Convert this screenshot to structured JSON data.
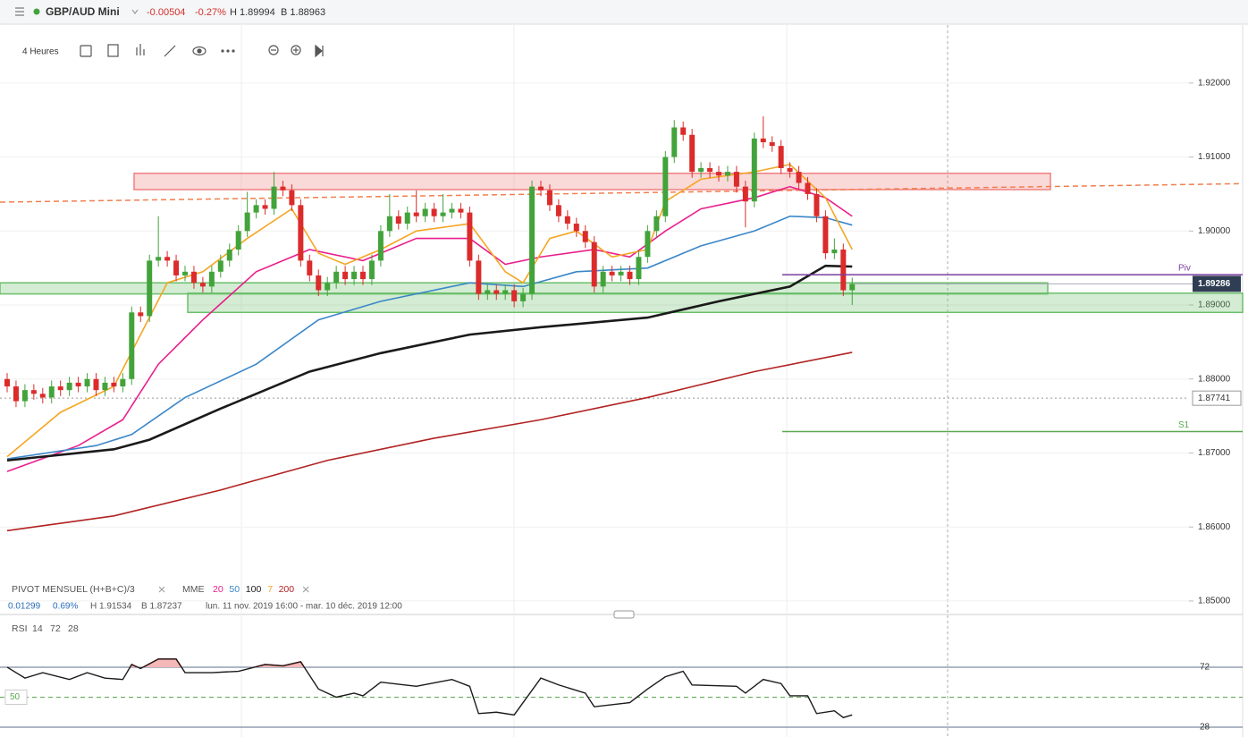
{
  "header": {
    "symbol": "GBP/AUD Mini",
    "change": "-0.00504",
    "change_pct": "-0.27%",
    "high": "H 1.89994",
    "low": "B 1.88963"
  },
  "toolbar": {
    "timeframe": "4 Heures"
  },
  "chart_data": [
    {
      "type": "candlestick",
      "grid": true,
      "up_color": "#43a33b",
      "down_color": "#dc2b2b",
      "ylim": [
        1.8483,
        1.9282
      ],
      "yticks": [
        {
          "value": 1.92,
          "label": "1.92000"
        },
        {
          "value": 1.91,
          "label": "1.91000"
        },
        {
          "value": 1.9,
          "label": "1.90000"
        },
        {
          "value": 1.89,
          "label": "1.89000"
        },
        {
          "value": 1.88,
          "label": "1.88000"
        },
        {
          "value": 1.87,
          "label": "1.87000"
        },
        {
          "value": 1.86,
          "label": "1.86000"
        },
        {
          "value": 1.85,
          "label": "1.85000"
        }
      ],
      "open": [
        1.88,
        1.879,
        1.877,
        1.8785,
        1.878,
        1.8775,
        1.879,
        1.8785,
        1.8795,
        1.879,
        1.88,
        1.8785,
        1.8795,
        1.879,
        1.88,
        1.889,
        1.8885,
        1.896,
        1.8965,
        1.896,
        1.894,
        1.8945,
        1.893,
        1.8925,
        1.8945,
        1.896,
        1.8975,
        1.9,
        1.9025,
        1.9035,
        1.903,
        1.906,
        1.9055,
        1.9035,
        1.896,
        1.894,
        1.892,
        1.893,
        1.8945,
        1.8935,
        1.8945,
        1.8935,
        1.896,
        1.9,
        1.902,
        1.901,
        1.9025,
        1.902,
        1.903,
        1.902,
        1.9025,
        1.903,
        1.9025,
        1.896,
        1.8915,
        1.892,
        1.8915,
        1.892,
        1.8905,
        1.8915,
        1.906,
        1.9055,
        1.9035,
        1.902,
        1.901,
        1.9,
        1.8985,
        1.8925,
        1.8945,
        1.894,
        1.8945,
        1.8935,
        1.8965,
        1.9,
        1.902,
        1.91,
        1.914,
        1.913,
        1.908,
        1.9085,
        1.908,
        1.9075,
        1.908,
        1.906,
        1.904,
        1.9125,
        1.912,
        1.9115,
        1.9085,
        1.908,
        1.9065,
        1.905,
        1.902,
        1.897,
        1.8975,
        1.892
      ],
      "high": [
        1.8808,
        1.8798,
        1.8793,
        1.8793,
        1.8788,
        1.8798,
        1.8798,
        1.8803,
        1.8803,
        1.8808,
        1.8808,
        1.8803,
        1.8803,
        1.8808,
        1.8898,
        1.8898,
        1.8968,
        1.902,
        1.8973,
        1.8968,
        1.8953,
        1.8953,
        1.8938,
        1.8953,
        1.8968,
        1.8983,
        1.9008,
        1.9053,
        1.9043,
        1.9043,
        1.908,
        1.9068,
        1.9063,
        1.9043,
        1.8968,
        1.8948,
        1.8938,
        1.8953,
        1.8953,
        1.8953,
        1.8953,
        1.8968,
        1.9008,
        1.905,
        1.9028,
        1.9033,
        1.9055,
        1.9038,
        1.9038,
        1.905,
        1.9038,
        1.9038,
        1.9033,
        1.8968,
        1.8928,
        1.8928,
        1.8928,
        1.8928,
        1.8923,
        1.9068,
        1.9068,
        1.9063,
        1.9043,
        1.9028,
        1.9018,
        1.9008,
        1.8993,
        1.8953,
        1.8953,
        1.8953,
        1.8953,
        1.8973,
        1.9008,
        1.9028,
        1.9108,
        1.915,
        1.9148,
        1.9138,
        1.9093,
        1.9093,
        1.9088,
        1.9088,
        1.9088,
        1.9068,
        1.9133,
        1.9155,
        1.9128,
        1.9123,
        1.9093,
        1.9088,
        1.9073,
        1.9058,
        1.9028,
        1.899,
        1.8983,
        1.8937
      ],
      "low": [
        1.8782,
        1.8762,
        1.8762,
        1.8772,
        1.8767,
        1.8767,
        1.8777,
        1.8777,
        1.8782,
        1.8782,
        1.8777,
        1.8777,
        1.8782,
        1.8782,
        1.8792,
        1.8877,
        1.8877,
        1.8952,
        1.8952,
        1.8932,
        1.8932,
        1.8922,
        1.8917,
        1.8917,
        1.8937,
        1.8952,
        1.8967,
        1.8992,
        1.9017,
        1.9022,
        1.9022,
        1.9047,
        1.9027,
        1.8952,
        1.8932,
        1.8912,
        1.8912,
        1.8922,
        1.8927,
        1.8927,
        1.8927,
        1.8927,
        1.8952,
        1.8992,
        1.9002,
        1.9002,
        1.9012,
        1.9012,
        1.9012,
        1.9012,
        1.9017,
        1.9017,
        1.8952,
        1.8907,
        1.8907,
        1.8907,
        1.8907,
        1.8897,
        1.8897,
        1.8907,
        1.9047,
        1.9027,
        1.9012,
        1.9002,
        1.8992,
        1.8977,
        1.8917,
        1.8917,
        1.8932,
        1.8932,
        1.8927,
        1.8927,
        1.8957,
        1.8992,
        1.9012,
        1.9092,
        1.9122,
        1.9072,
        1.9072,
        1.9072,
        1.9067,
        1.9067,
        1.9052,
        1.9005,
        1.9032,
        1.9112,
        1.9107,
        1.9077,
        1.9072,
        1.9057,
        1.9042,
        1.9012,
        1.8962,
        1.8962,
        1.8912,
        1.89
      ],
      "close": [
        1.879,
        1.877,
        1.8785,
        1.878,
        1.8775,
        1.879,
        1.8785,
        1.8795,
        1.879,
        1.88,
        1.8785,
        1.8795,
        1.879,
        1.88,
        1.889,
        1.8885,
        1.896,
        1.8965,
        1.896,
        1.894,
        1.8945,
        1.893,
        1.8925,
        1.8945,
        1.896,
        1.8975,
        1.9,
        1.9025,
        1.9035,
        1.903,
        1.906,
        1.9055,
        1.9035,
        1.896,
        1.894,
        1.892,
        1.893,
        1.8945,
        1.8935,
        1.8945,
        1.8935,
        1.896,
        1.9,
        1.902,
        1.901,
        1.9025,
        1.902,
        1.903,
        1.902,
        1.9025,
        1.903,
        1.9025,
        1.896,
        1.8915,
        1.892,
        1.8915,
        1.892,
        1.8905,
        1.8915,
        1.906,
        1.9055,
        1.9035,
        1.902,
        1.901,
        1.9,
        1.8985,
        1.8925,
        1.8945,
        1.894,
        1.8945,
        1.8935,
        1.8965,
        1.9,
        1.902,
        1.91,
        1.914,
        1.913,
        1.908,
        1.9085,
        1.908,
        1.9075,
        1.908,
        1.906,
        1.904,
        1.9125,
        1.912,
        1.9115,
        1.9085,
        1.908,
        1.9065,
        1.905,
        1.902,
        1.897,
        1.8975,
        1.892,
        1.89286
      ],
      "series": [
        {
          "name": "20",
          "color": "#e91e8c",
          "x": [
            0,
            8,
            13,
            17,
            22,
            28,
            34,
            40,
            46,
            52,
            56,
            60,
            66,
            70,
            74,
            78,
            84,
            88,
            92,
            95
          ],
          "values": [
            1.8675,
            1.871,
            1.8745,
            1.882,
            1.888,
            1.8945,
            1.8975,
            1.896,
            1.899,
            1.899,
            1.8955,
            1.8965,
            1.8975,
            1.8965,
            1.9,
            1.903,
            1.9045,
            1.906,
            1.9045,
            1.902
          ]
        },
        {
          "name": "50",
          "color": "#3a86c8",
          "x": [
            0,
            10,
            14,
            20,
            28,
            35,
            42,
            52,
            58,
            64,
            72,
            78,
            84,
            88,
            92,
            95
          ],
          "values": [
            1.8692,
            1.871,
            1.8725,
            1.8775,
            1.882,
            1.888,
            1.8905,
            1.893,
            1.8925,
            1.8945,
            1.895,
            1.898,
            1.9,
            1.902,
            1.9018,
            1.9008
          ]
        },
        {
          "name": "100",
          "color": "#1a1a1a",
          "x": [
            0,
            12,
            16,
            24,
            34,
            42,
            52,
            60,
            72,
            80,
            88,
            92,
            95
          ],
          "values": [
            1.869,
            1.8705,
            1.8718,
            1.876,
            1.881,
            1.8835,
            1.886,
            1.887,
            1.8883,
            1.8905,
            1.8925,
            1.8953,
            1.8952
          ]
        },
        {
          "name": "7",
          "color": "#f5a623",
          "x": [
            0,
            6,
            12,
            15,
            18,
            22,
            27,
            32,
            35,
            38,
            42,
            46,
            52,
            56,
            58,
            61,
            64,
            68,
            72,
            74,
            78,
            84,
            88,
            92,
            95
          ],
          "values": [
            1.8695,
            1.8755,
            1.879,
            1.886,
            1.893,
            1.8945,
            1.899,
            1.903,
            1.897,
            1.8955,
            1.8975,
            1.9,
            1.901,
            1.8945,
            1.893,
            1.899,
            1.9,
            1.8965,
            1.8975,
            1.904,
            1.907,
            1.908,
            1.909,
            1.9045,
            1.8975
          ]
        },
        {
          "name": "200",
          "color": "#b22222",
          "x": [
            0,
            12,
            24,
            36,
            48,
            60,
            72,
            84,
            95
          ],
          "values": [
            1.8595,
            1.8615,
            1.865,
            1.869,
            1.872,
            1.8745,
            1.8775,
            1.881,
            1.8836
          ]
        }
      ],
      "levels": [
        {
          "name": "Piv",
          "value": 1.8941,
          "color": "#7b3fa0"
        },
        {
          "name": "S1",
          "value": 1.8729,
          "color": "#5aa84f"
        }
      ],
      "trendline": {
        "values": [
          1.9039,
          1.9064
        ],
        "color": "#f07f4f"
      },
      "zones": [
        {
          "low": 1.9056,
          "high": 1.9078,
          "color": "#f08080"
        },
        {
          "low": 1.8915,
          "high": 1.893,
          "color": "#6cbf6c"
        },
        {
          "low": 1.889,
          "high": 1.8916,
          "color": "#6cbf6c"
        }
      ],
      "last_price": 1.89286,
      "ref_price": 1.87741,
      "indicator": "PIVOT MENSUEL (H+B+C)/3",
      "ma_label": "MME",
      "stats": [
        "0.01299",
        "0.69%",
        "H 1.91534",
        "B 1.87237",
        "lun. 11 nov. 2019 16:00 - mar. 10 déc. 2019 12:00"
      ]
    },
    {
      "type": "line",
      "title": "RSI",
      "params": [
        "14",
        "72",
        "28"
      ],
      "color": "#1a1a1a",
      "overbought_color": "#f4b8b8",
      "ylim": [
        20.8,
        107.4
      ],
      "yticks": [
        28,
        50,
        72
      ],
      "x": [
        0,
        2,
        4,
        7,
        9,
        11,
        13,
        14,
        15,
        17,
        19,
        20,
        23,
        26,
        29,
        31,
        33,
        35,
        37,
        39,
        40,
        42,
        46,
        50,
        52,
        53,
        55,
        57,
        58,
        60,
        62,
        65,
        66,
        70,
        72,
        74,
        76,
        77,
        82,
        83,
        85,
        87,
        88,
        90,
        91,
        93,
        94,
        95
      ],
      "values": [
        72,
        64,
        68,
        63,
        68,
        64,
        63,
        74,
        71,
        78,
        78,
        68,
        68,
        69,
        74,
        73,
        76,
        56,
        50,
        53,
        51,
        61,
        58,
        63,
        58,
        38,
        39,
        37,
        46,
        64,
        59,
        53,
        43,
        46,
        56,
        65,
        69,
        59,
        58,
        53,
        63,
        60,
        51,
        51,
        38,
        40,
        35,
        37
      ]
    }
  ]
}
